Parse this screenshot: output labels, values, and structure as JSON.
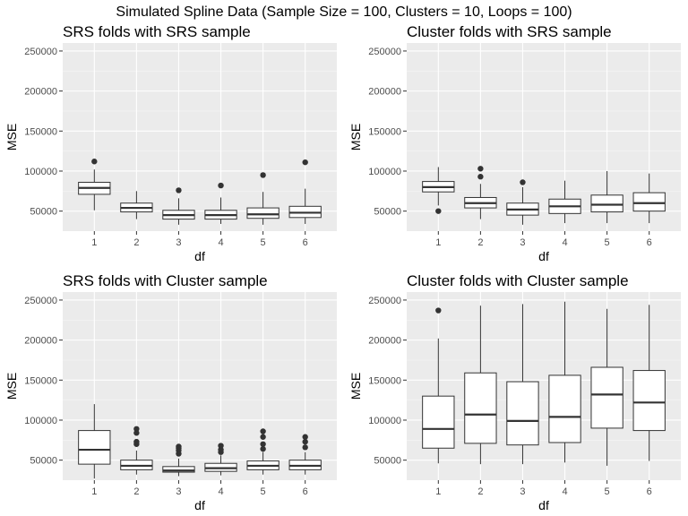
{
  "figure_title": "Simulated Spline Data (Sample Size = 100, Clusters = 10, Loops = 100)",
  "chart_data": [
    {
      "type": "box",
      "title": "SRS folds with SRS sample",
      "xlabel": "df",
      "ylabel": "MSE",
      "ylim": [
        25000,
        260000
      ],
      "yticks": [
        50000,
        100000,
        150000,
        200000,
        250000
      ],
      "ytick_labels": [
        "50000",
        "100000",
        "150000",
        "200000",
        "250000"
      ],
      "categories": [
        "1",
        "2",
        "3",
        "4",
        "5",
        "6"
      ],
      "boxes": [
        {
          "lower_whisker": 51000,
          "q1": 71000,
          "median": 79000,
          "q3": 86000,
          "upper_whisker": 102000,
          "outliers": [
            112000
          ]
        },
        {
          "lower_whisker": 40000,
          "q1": 49000,
          "median": 54000,
          "q3": 60000,
          "upper_whisker": 75000,
          "outliers": []
        },
        {
          "lower_whisker": 33000,
          "q1": 40000,
          "median": 45000,
          "q3": 51000,
          "upper_whisker": 66000,
          "outliers": [
            76000
          ]
        },
        {
          "lower_whisker": 34000,
          "q1": 40000,
          "median": 45000,
          "q3": 51000,
          "upper_whisker": 67000,
          "outliers": [
            82000
          ]
        },
        {
          "lower_whisker": 33000,
          "q1": 41000,
          "median": 46000,
          "q3": 54000,
          "upper_whisker": 74000,
          "outliers": [
            95000
          ]
        },
        {
          "lower_whisker": 34000,
          "q1": 42000,
          "median": 48000,
          "q3": 56000,
          "upper_whisker": 78000,
          "outliers": [
            111000
          ]
        }
      ]
    },
    {
      "type": "box",
      "title": "Cluster folds with SRS sample",
      "xlabel": "df",
      "ylabel": "MSE",
      "ylim": [
        25000,
        260000
      ],
      "yticks": [
        50000,
        100000,
        150000,
        200000,
        250000
      ],
      "ytick_labels": [
        "50000",
        "100000",
        "150000",
        "200000",
        "250000"
      ],
      "categories": [
        "1",
        "2",
        "3",
        "4",
        "5",
        "6"
      ],
      "boxes": [
        {
          "lower_whisker": 57000,
          "q1": 74000,
          "median": 80000,
          "q3": 87000,
          "upper_whisker": 105000,
          "outliers": [
            50000
          ]
        },
        {
          "lower_whisker": 40000,
          "q1": 54000,
          "median": 60000,
          "q3": 67000,
          "upper_whisker": 84000,
          "outliers": [
            93000,
            103000
          ]
        },
        {
          "lower_whisker": 33000,
          "q1": 45000,
          "median": 52000,
          "q3": 60000,
          "upper_whisker": 80000,
          "outliers": [
            86000
          ]
        },
        {
          "lower_whisker": 35000,
          "q1": 47000,
          "median": 56000,
          "q3": 65000,
          "upper_whisker": 88000,
          "outliers": []
        },
        {
          "lower_whisker": 35000,
          "q1": 49000,
          "median": 58000,
          "q3": 70000,
          "upper_whisker": 100000,
          "outliers": []
        },
        {
          "lower_whisker": 35000,
          "q1": 50000,
          "median": 60000,
          "q3": 73000,
          "upper_whisker": 97000,
          "outliers": []
        }
      ]
    },
    {
      "type": "box",
      "title": "SRS folds with Cluster sample",
      "xlabel": "df",
      "ylabel": "MSE",
      "ylim": [
        25000,
        260000
      ],
      "yticks": [
        50000,
        100000,
        150000,
        200000,
        250000
      ],
      "ytick_labels": [
        "50000",
        "100000",
        "150000",
        "200000",
        "250000"
      ],
      "categories": [
        "1",
        "2",
        "3",
        "4",
        "5",
        "6"
      ],
      "boxes": [
        {
          "lower_whisker": 27000,
          "q1": 45000,
          "median": 63000,
          "q3": 87000,
          "upper_whisker": 120000,
          "outliers": []
        },
        {
          "lower_whisker": 32000,
          "q1": 38000,
          "median": 43000,
          "q3": 50000,
          "upper_whisker": 62000,
          "outliers": [
            70000,
            73000,
            84000,
            89000
          ]
        },
        {
          "lower_whisker": 30000,
          "q1": 35000,
          "median": 37000,
          "q3": 42000,
          "upper_whisker": 52000,
          "outliers": [
            58000,
            62000,
            65000,
            67000
          ]
        },
        {
          "lower_whisker": 31000,
          "q1": 36000,
          "median": 40000,
          "q3": 46000,
          "upper_whisker": 56000,
          "outliers": [
            60000,
            63000,
            68000
          ]
        },
        {
          "lower_whisker": 32000,
          "q1": 38000,
          "median": 43000,
          "q3": 49000,
          "upper_whisker": 60000,
          "outliers": [
            64000,
            70000,
            79000,
            86000
          ]
        },
        {
          "lower_whisker": 32000,
          "q1": 38000,
          "median": 43000,
          "q3": 50000,
          "upper_whisker": 60000,
          "outliers": [
            66000,
            73000,
            79000
          ]
        }
      ]
    },
    {
      "type": "box",
      "title": "Cluster folds with Cluster sample",
      "xlabel": "df",
      "ylabel": "MSE",
      "ylim": [
        25000,
        260000
      ],
      "yticks": [
        50000,
        100000,
        150000,
        200000,
        250000
      ],
      "ytick_labels": [
        "50000",
        "100000",
        "150000",
        "200000",
        "250000"
      ],
      "categories": [
        "1",
        "2",
        "3",
        "4",
        "5",
        "6"
      ],
      "boxes": [
        {
          "lower_whisker": 46000,
          "q1": 65000,
          "median": 89000,
          "q3": 130000,
          "upper_whisker": 202000,
          "outliers": [
            237000
          ]
        },
        {
          "lower_whisker": 45000,
          "q1": 71000,
          "median": 107000,
          "q3": 159000,
          "upper_whisker": 243000,
          "outliers": []
        },
        {
          "lower_whisker": 45000,
          "q1": 69000,
          "median": 99000,
          "q3": 148000,
          "upper_whisker": 245000,
          "outliers": []
        },
        {
          "lower_whisker": 47000,
          "q1": 72000,
          "median": 104000,
          "q3": 156000,
          "upper_whisker": 248000,
          "outliers": []
        },
        {
          "lower_whisker": 43000,
          "q1": 90000,
          "median": 132000,
          "q3": 166000,
          "upper_whisker": 239000,
          "outliers": []
        },
        {
          "lower_whisker": 49000,
          "q1": 87000,
          "median": 122000,
          "q3": 162000,
          "upper_whisker": 244000,
          "outliers": []
        }
      ]
    }
  ]
}
